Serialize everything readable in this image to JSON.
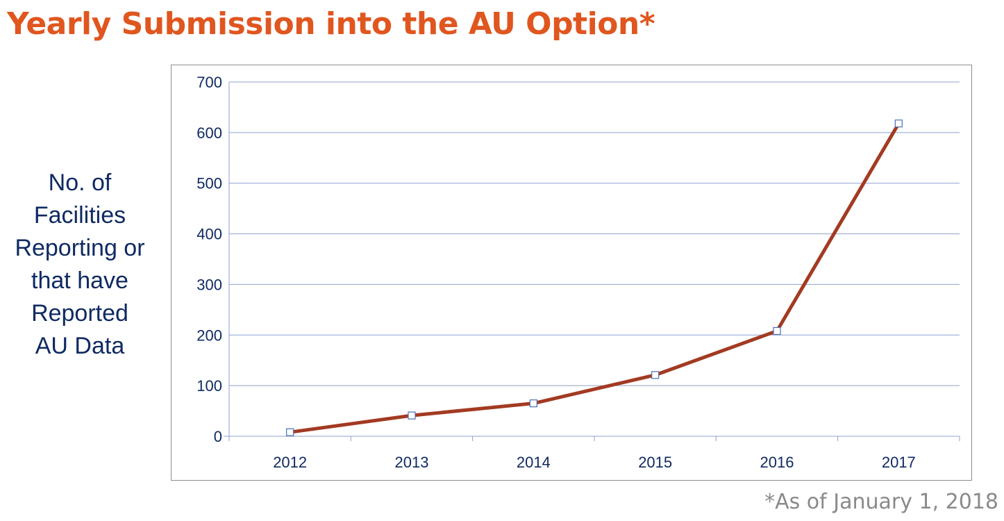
{
  "slide": {
    "title": "Yearly Submission into the AU Option*",
    "ylabel_lines": [
      "No. of",
      "Facilities",
      "Reporting or",
      "that have",
      "Reported",
      "AU Data"
    ],
    "footnote": "*As of January 1, 2018"
  },
  "colors": {
    "title": "#e0561f",
    "line": "#a33a22",
    "axis_text": "#0f2a62",
    "grid": "#8ea0cf",
    "footnote": "#8a8a8a"
  },
  "chart_data": {
    "type": "line",
    "title": "",
    "xlabel": "",
    "ylabel": "No. of Facilities Reporting or that have Reported AU Data",
    "categories": [
      "2012",
      "2013",
      "2014",
      "2015",
      "2016",
      "2017"
    ],
    "series": [
      {
        "values": [
          8,
          41,
          65,
          121,
          208,
          618
        ]
      }
    ],
    "ylim": [
      0,
      700
    ],
    "yticks": [
      0,
      100,
      200,
      300,
      400,
      500,
      600,
      700
    ],
    "grid": true,
    "legend": "none",
    "marker": "square"
  }
}
